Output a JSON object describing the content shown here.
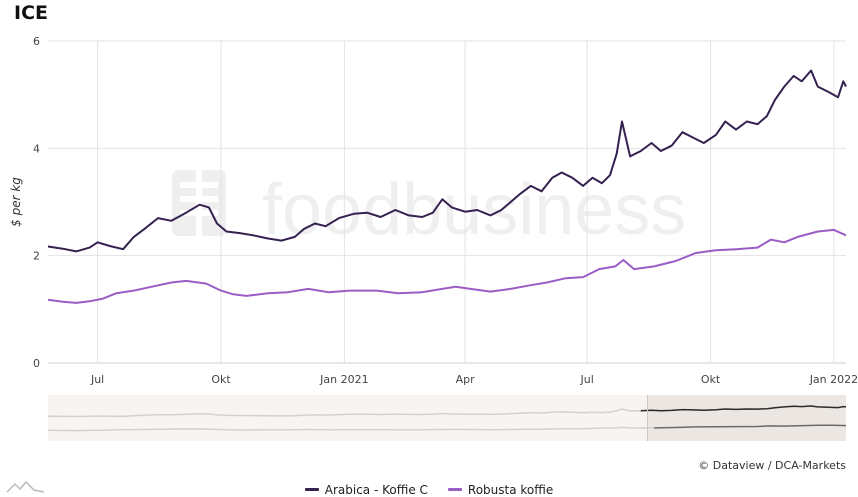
{
  "title": "ICE",
  "credit": "© Dataview / DCA-Markets",
  "watermark": "foodbusiness",
  "colors": {
    "arabica": "#34214f",
    "robusta": "#9b5cc6",
    "grid": "#e3e3e3",
    "navigator_bg": "#f7f4f2",
    "navigator_sel": "#ece7e3"
  },
  "chart_data": {
    "type": "line",
    "ylabel": "$ per kg",
    "ylim": [
      0,
      6
    ],
    "yticks": [
      0,
      2,
      4,
      6
    ],
    "x_range": [
      "2020-05-25",
      "2022-01-10"
    ],
    "xticks": [
      {
        "date": "2020-07-01",
        "label": "Jul"
      },
      {
        "date": "2020-10-01",
        "label": "Okt"
      },
      {
        "date": "2021-01-01",
        "label": "Jan 2021"
      },
      {
        "date": "2021-04-01",
        "label": "Apr"
      },
      {
        "date": "2021-07-01",
        "label": "Jul"
      },
      {
        "date": "2021-10-01",
        "label": "Okt"
      },
      {
        "date": "2022-01-01",
        "label": "Jan 2022"
      }
    ],
    "legend_position": "bottom",
    "grid": true,
    "series": [
      {
        "name": "Arabica - Koffie C",
        "color": "#34214f",
        "points": [
          [
            "2020-05-25",
            2.17
          ],
          [
            "2020-06-05",
            2.13
          ],
          [
            "2020-06-15",
            2.08
          ],
          [
            "2020-06-25",
            2.15
          ],
          [
            "2020-07-01",
            2.25
          ],
          [
            "2020-07-10",
            2.18
          ],
          [
            "2020-07-20",
            2.12
          ],
          [
            "2020-07-28",
            2.35
          ],
          [
            "2020-08-05",
            2.5
          ],
          [
            "2020-08-15",
            2.7
          ],
          [
            "2020-08-25",
            2.65
          ],
          [
            "2020-09-05",
            2.8
          ],
          [
            "2020-09-15",
            2.95
          ],
          [
            "2020-09-22",
            2.9
          ],
          [
            "2020-09-28",
            2.6
          ],
          [
            "2020-10-05",
            2.45
          ],
          [
            "2020-10-15",
            2.42
          ],
          [
            "2020-10-25",
            2.38
          ],
          [
            "2020-11-05",
            2.32
          ],
          [
            "2020-11-15",
            2.28
          ],
          [
            "2020-11-25",
            2.35
          ],
          [
            "2020-12-02",
            2.5
          ],
          [
            "2020-12-10",
            2.6
          ],
          [
            "2020-12-18",
            2.55
          ],
          [
            "2020-12-28",
            2.7
          ],
          [
            "2021-01-08",
            2.78
          ],
          [
            "2021-01-18",
            2.8
          ],
          [
            "2021-01-28",
            2.72
          ],
          [
            "2021-02-08",
            2.85
          ],
          [
            "2021-02-18",
            2.75
          ],
          [
            "2021-02-28",
            2.72
          ],
          [
            "2021-03-08",
            2.8
          ],
          [
            "2021-03-15",
            3.05
          ],
          [
            "2021-03-22",
            2.9
          ],
          [
            "2021-04-01",
            2.82
          ],
          [
            "2021-04-10",
            2.85
          ],
          [
            "2021-04-20",
            2.75
          ],
          [
            "2021-04-28",
            2.85
          ],
          [
            "2021-05-05",
            3.0
          ],
          [
            "2021-05-12",
            3.15
          ],
          [
            "2021-05-20",
            3.3
          ],
          [
            "2021-05-28",
            3.2
          ],
          [
            "2021-06-05",
            3.45
          ],
          [
            "2021-06-12",
            3.55
          ],
          [
            "2021-06-20",
            3.45
          ],
          [
            "2021-06-28",
            3.3
          ],
          [
            "2021-07-05",
            3.45
          ],
          [
            "2021-07-12",
            3.35
          ],
          [
            "2021-07-18",
            3.5
          ],
          [
            "2021-07-23",
            3.9
          ],
          [
            "2021-07-27",
            4.5
          ],
          [
            "2021-08-02",
            3.85
          ],
          [
            "2021-08-10",
            3.95
          ],
          [
            "2021-08-18",
            4.1
          ],
          [
            "2021-08-25",
            3.95
          ],
          [
            "2021-09-02",
            4.05
          ],
          [
            "2021-09-10",
            4.3
          ],
          [
            "2021-09-18",
            4.2
          ],
          [
            "2021-09-26",
            4.1
          ],
          [
            "2021-10-05",
            4.25
          ],
          [
            "2021-10-12",
            4.5
          ],
          [
            "2021-10-20",
            4.35
          ],
          [
            "2021-10-28",
            4.5
          ],
          [
            "2021-11-05",
            4.45
          ],
          [
            "2021-11-12",
            4.6
          ],
          [
            "2021-11-18",
            4.9
          ],
          [
            "2021-11-25",
            5.15
          ],
          [
            "2021-12-02",
            5.35
          ],
          [
            "2021-12-08",
            5.25
          ],
          [
            "2021-12-15",
            5.45
          ],
          [
            "2021-12-20",
            5.15
          ],
          [
            "2021-12-28",
            5.05
          ],
          [
            "2022-01-04",
            4.95
          ],
          [
            "2022-01-08",
            5.25
          ],
          [
            "2022-01-10",
            5.15
          ]
        ]
      },
      {
        "name": "Robusta koffie",
        "color": "#9b5cc6",
        "points": [
          [
            "2020-05-25",
            1.18
          ],
          [
            "2020-06-05",
            1.14
          ],
          [
            "2020-06-15",
            1.12
          ],
          [
            "2020-06-25",
            1.15
          ],
          [
            "2020-07-05",
            1.2
          ],
          [
            "2020-07-15",
            1.3
          ],
          [
            "2020-07-28",
            1.35
          ],
          [
            "2020-08-10",
            1.42
          ],
          [
            "2020-08-25",
            1.5
          ],
          [
            "2020-09-05",
            1.53
          ],
          [
            "2020-09-20",
            1.48
          ],
          [
            "2020-10-01",
            1.35
          ],
          [
            "2020-10-10",
            1.28
          ],
          [
            "2020-10-20",
            1.25
          ],
          [
            "2020-11-05",
            1.3
          ],
          [
            "2020-11-20",
            1.32
          ],
          [
            "2020-12-05",
            1.38
          ],
          [
            "2020-12-20",
            1.32
          ],
          [
            "2021-01-05",
            1.35
          ],
          [
            "2021-01-25",
            1.35
          ],
          [
            "2021-02-10",
            1.3
          ],
          [
            "2021-02-28",
            1.32
          ],
          [
            "2021-03-15",
            1.38
          ],
          [
            "2021-03-25",
            1.42
          ],
          [
            "2021-04-05",
            1.38
          ],
          [
            "2021-04-20",
            1.33
          ],
          [
            "2021-05-05",
            1.38
          ],
          [
            "2021-05-20",
            1.45
          ],
          [
            "2021-06-01",
            1.5
          ],
          [
            "2021-06-15",
            1.58
          ],
          [
            "2021-06-28",
            1.6
          ],
          [
            "2021-07-10",
            1.75
          ],
          [
            "2021-07-22",
            1.8
          ],
          [
            "2021-07-28",
            1.92
          ],
          [
            "2021-08-05",
            1.75
          ],
          [
            "2021-08-20",
            1.8
          ],
          [
            "2021-09-05",
            1.9
          ],
          [
            "2021-09-20",
            2.05
          ],
          [
            "2021-10-05",
            2.1
          ],
          [
            "2021-10-20",
            2.12
          ],
          [
            "2021-11-05",
            2.15
          ],
          [
            "2021-11-15",
            2.3
          ],
          [
            "2021-11-25",
            2.25
          ],
          [
            "2021-12-05",
            2.35
          ],
          [
            "2021-12-20",
            2.45
          ],
          [
            "2022-01-01",
            2.48
          ],
          [
            "2022-01-10",
            2.38
          ]
        ]
      }
    ]
  }
}
